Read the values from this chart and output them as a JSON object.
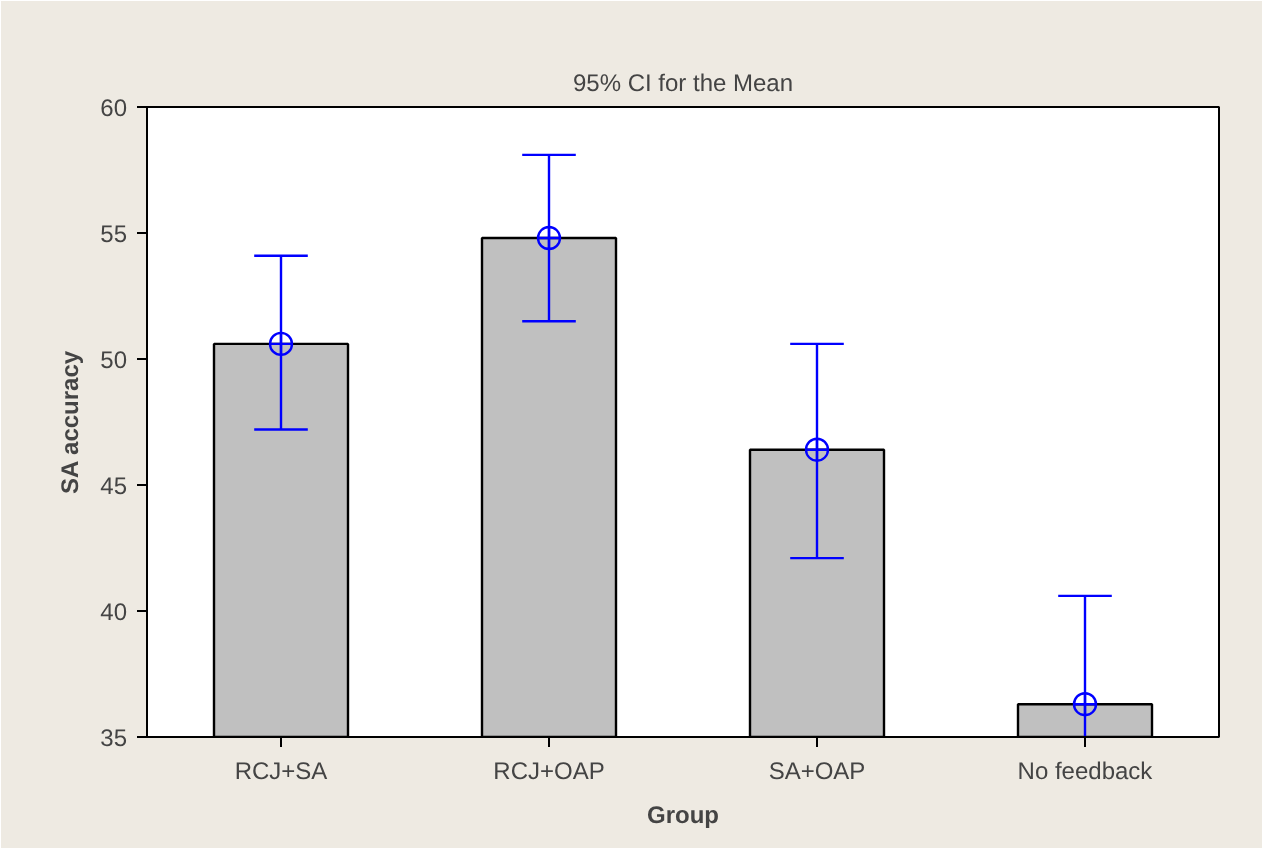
{
  "chart_data": {
    "type": "bar",
    "title": "95% CI for the Mean",
    "xlabel": "Group",
    "ylabel": "SA accuracy",
    "categories": [
      "RCJ+SA",
      "RCJ+OAP",
      "SA+OAP",
      "No feedback"
    ],
    "series": [
      {
        "color": "#c0c0c0",
        "values": [
          50.6,
          54.8,
          46.4,
          36.3
        ]
      },
      {
        "type": "scatter",
        "color": "#0000ff",
        "values": [
          50.6,
          54.8,
          46.4,
          36.3
        ],
        "errors": [
          [
            47.2,
            54.1
          ],
          [
            51.5,
            58.1
          ],
          [
            42.1,
            50.6
          ],
          [
            35,
            40.6
          ]
        ]
      }
    ],
    "ylim": [
      35,
      60
    ],
    "yticks": [
      35,
      40,
      45,
      50,
      55,
      60
    ],
    "grid": false,
    "marker": "circle"
  }
}
